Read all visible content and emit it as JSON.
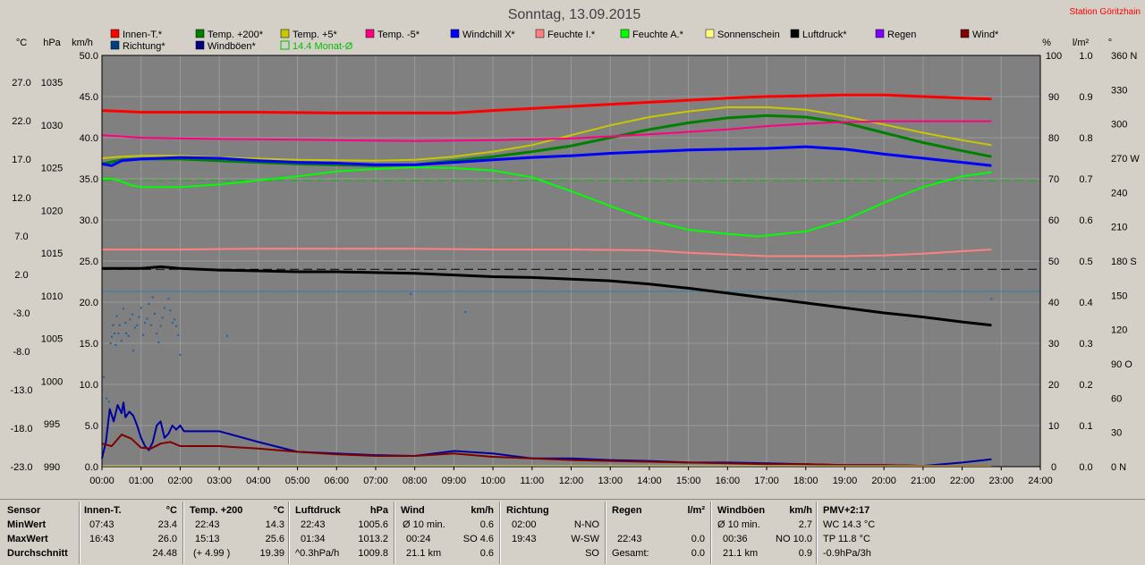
{
  "title": "Sonntag, 13.09.2015",
  "station": "Station Göritzhain",
  "units": {
    "temp": "°C",
    "pressure": "hPa",
    "wind": "km/h",
    "percent": "%",
    "rain": "l/m²",
    "deg": "°"
  },
  "legend": [
    {
      "label": "Innen-T.*",
      "color": "#ff0000"
    },
    {
      "label": "Temp. +200*",
      "color": "#008000"
    },
    {
      "label": "Temp. +5*",
      "color": "#c8c800"
    },
    {
      "label": "Temp. -5*",
      "color": "#ff0080"
    },
    {
      "label": "Windchill X*",
      "color": "#0000ff"
    },
    {
      "label": "Feuchte I.*",
      "color": "#ff8080"
    },
    {
      "label": "Feuchte A.*",
      "color": "#00ff00"
    },
    {
      "label": "Sonnenschein",
      "color": "#ffff80"
    },
    {
      "label": "Luftdruck*",
      "color": "#000000"
    },
    {
      "label": "Regen",
      "color": "#8000ff"
    },
    {
      "label": "Wind*",
      "color": "#800000"
    },
    {
      "label": "Richtung*",
      "color": "#004080"
    },
    {
      "label": "Windböen*",
      "color": "#000080"
    },
    {
      "label": "14.4 Monat-Ø",
      "color": "#00c000",
      "outline": true
    }
  ],
  "chart_data": {
    "type": "line",
    "x_ticks": [
      "00:00",
      "01:00",
      "02:00",
      "03:00",
      "04:00",
      "05:00",
      "06:00",
      "07:00",
      "08:00",
      "09:00",
      "10:00",
      "11:00",
      "12:00",
      "13:00",
      "14:00",
      "15:00",
      "16:00",
      "17:00",
      "18:00",
      "19:00",
      "20:00",
      "21:00",
      "22:00",
      "23:00",
      "24:00"
    ],
    "y_main_ticks": [
      "50.0",
      "45.0",
      "40.0",
      "35.0",
      "30.0",
      "25.0",
      "20.0",
      "15.0",
      "10.0",
      "5.0",
      "0.0"
    ],
    "y_temp_ticks": [
      "27.0",
      "22.0",
      "17.0",
      "12.0",
      "7.0",
      "2.0",
      "-3.0",
      "-8.0",
      "-13.0",
      "-18.0",
      "-23.0"
    ],
    "y_hpa_ticks": [
      "1035",
      "1030",
      "1025",
      "1020",
      "1015",
      "1010",
      "1005",
      "1000",
      "995",
      "990"
    ],
    "y_percent_ticks": [
      "100",
      "90",
      "80",
      "70",
      "60",
      "50",
      "40",
      "30",
      "20",
      "10",
      "0"
    ],
    "y_rain_ticks": [
      "1.0",
      "0.9",
      "0.8",
      "0.7",
      "0.6",
      "0.5",
      "0.4",
      "0.3",
      "0.2",
      "0.1",
      "0.0"
    ],
    "y_dir_ticks": [
      "360 N",
      "330",
      "300",
      "270 W",
      "240",
      "210",
      "180 S",
      "150",
      "120",
      "90  O",
      "60",
      "30",
      "0  N"
    ],
    "ylim": [
      0,
      50
    ],
    "x_hours": [
      0,
      24
    ],
    "series": [
      {
        "name": "Innen-T.*",
        "color": "#ff0000",
        "width": 3,
        "x": [
          0,
          1,
          2,
          4,
          6,
          8,
          9,
          10,
          12,
          14,
          16,
          17,
          18,
          19,
          20,
          22,
          22.75
        ],
        "y": [
          43.3,
          43.1,
          43.1,
          43.1,
          43.0,
          43.0,
          43.0,
          43.3,
          43.8,
          44.3,
          44.8,
          45.0,
          45.1,
          45.2,
          45.2,
          44.8,
          44.7
        ]
      },
      {
        "name": "Temp. +200*",
        "color": "#008000",
        "width": 3,
        "x": [
          0,
          0.5,
          1,
          2,
          3,
          5,
          7,
          8,
          9,
          10,
          11,
          12,
          13,
          14,
          15,
          16,
          17,
          18,
          19,
          20,
          21,
          22,
          22.75
        ],
        "y": [
          36.8,
          37.3,
          37.4,
          37.4,
          37.2,
          36.8,
          36.6,
          36.7,
          37.2,
          37.7,
          38.3,
          39.0,
          40.0,
          41.0,
          41.8,
          42.4,
          42.7,
          42.5,
          41.8,
          40.6,
          39.4,
          38.4,
          37.7
        ]
      },
      {
        "name": "Temp. +5*",
        "color": "#c8c800",
        "width": 2,
        "x": [
          0,
          0.5,
          1,
          2,
          3,
          5,
          7,
          8,
          9,
          10,
          11,
          12,
          13,
          14,
          15,
          16,
          17,
          18,
          19,
          20,
          21,
          22,
          22.75
        ],
        "y": [
          37.5,
          37.7,
          37.8,
          37.8,
          37.6,
          37.3,
          37.2,
          37.3,
          37.7,
          38.3,
          39.1,
          40.3,
          41.5,
          42.5,
          43.2,
          43.7,
          43.7,
          43.4,
          42.6,
          41.6,
          40.6,
          39.7,
          39.1
        ]
      },
      {
        "name": "Temp. -5*",
        "color": "#ff0080",
        "width": 2,
        "x": [
          0,
          1,
          2,
          4,
          6,
          8,
          10,
          12,
          14,
          16,
          17,
          18,
          19,
          20,
          22,
          22.75
        ],
        "y": [
          40.3,
          40.0,
          39.9,
          39.8,
          39.7,
          39.6,
          39.7,
          39.9,
          40.4,
          41.0,
          41.4,
          41.7,
          41.9,
          42.0,
          42.0,
          42.0
        ]
      },
      {
        "name": "Windchill X*",
        "color": "#0000ff",
        "width": 3,
        "x": [
          0,
          0.25,
          0.5,
          1,
          2,
          3,
          4,
          5,
          6,
          7,
          8,
          9,
          10,
          11,
          12,
          13,
          14,
          15,
          16,
          17,
          18,
          19,
          20,
          21,
          22,
          22.75
        ],
        "y": [
          36.8,
          36.6,
          37.2,
          37.4,
          37.6,
          37.5,
          37.2,
          37.0,
          36.9,
          36.7,
          36.7,
          37.0,
          37.3,
          37.6,
          37.8,
          38.1,
          38.3,
          38.5,
          38.6,
          38.7,
          38.9,
          38.6,
          38.0,
          37.5,
          37.0,
          36.6
        ]
      },
      {
        "name": "Feuchte I.*",
        "color": "#ff8080",
        "width": 2,
        "x": [
          0,
          2,
          4,
          6,
          8,
          10,
          12,
          14,
          15,
          16,
          17,
          18,
          19,
          20,
          21,
          22,
          22.75
        ],
        "y": [
          26.4,
          26.4,
          26.5,
          26.5,
          26.5,
          26.4,
          26.4,
          26.3,
          26.0,
          25.8,
          25.6,
          25.6,
          25.6,
          25.7,
          25.9,
          26.2,
          26.4
        ]
      },
      {
        "name": "Feuchte A.*",
        "color": "#00ff00",
        "width": 2,
        "x": [
          0,
          0.25,
          0.5,
          0.75,
          1,
          2,
          3,
          4,
          5,
          6,
          7,
          8,
          9,
          10,
          11,
          12,
          13,
          14,
          15,
          16,
          16.75,
          17,
          18,
          19,
          20,
          21,
          22,
          22.75
        ],
        "y": [
          35.0,
          35.0,
          34.7,
          34.2,
          34.0,
          34.0,
          34.3,
          34.8,
          35.3,
          35.9,
          36.2,
          36.4,
          36.3,
          36.0,
          35.2,
          33.5,
          31.7,
          30.0,
          28.8,
          28.3,
          28.0,
          28.1,
          28.6,
          30.0,
          32.1,
          34.0,
          35.3,
          35.8
        ]
      },
      {
        "name": "Luftdruck*",
        "color": "#000000",
        "width": 3,
        "x": [
          0,
          1,
          1.5,
          2,
          3,
          4,
          5,
          6,
          7,
          8,
          9,
          10,
          11,
          12,
          13,
          14,
          15,
          16,
          17,
          18,
          19,
          20,
          21,
          22,
          22.75
        ],
        "y": [
          24.1,
          24.1,
          24.3,
          24.1,
          23.9,
          23.8,
          23.7,
          23.7,
          23.6,
          23.5,
          23.3,
          23.1,
          23.0,
          22.8,
          22.6,
          22.2,
          21.7,
          21.1,
          20.5,
          19.9,
          19.3,
          18.7,
          18.2,
          17.6,
          17.2
        ]
      },
      {
        "name": "Windböen*",
        "color": "#0000a0",
        "width": 2,
        "x": [
          0,
          0.1,
          0.2,
          0.3,
          0.4,
          0.5,
          0.55,
          0.6,
          0.7,
          0.8,
          0.9,
          1.0,
          1.1,
          1.2,
          1.3,
          1.4,
          1.5,
          1.6,
          1.7,
          1.8,
          1.9,
          2.0,
          2.1,
          3,
          4,
          5,
          6,
          7,
          8,
          9,
          10,
          11,
          12,
          13,
          14,
          15,
          16,
          17,
          18,
          19,
          20,
          21,
          22,
          22.75
        ],
        "y": [
          1.0,
          3.0,
          7.0,
          5.5,
          7.5,
          6.5,
          7.8,
          6.0,
          6.7,
          6.2,
          5.0,
          3.5,
          2.5,
          2.0,
          3.0,
          5.0,
          5.5,
          3.5,
          4.0,
          5.0,
          4.5,
          5.0,
          4.3,
          4.3,
          3.0,
          1.8,
          1.6,
          1.4,
          1.3,
          1.9,
          1.6,
          1.0,
          1.0,
          0.8,
          0.7,
          0.5,
          0.5,
          0.4,
          0.3,
          0.2,
          0.2,
          0.1,
          0.5,
          0.9
        ]
      },
      {
        "name": "Wind*",
        "color": "#800000",
        "width": 2,
        "x": [
          0,
          0.25,
          0.5,
          0.75,
          1.0,
          1.25,
          1.5,
          1.75,
          2.0,
          3,
          4,
          5,
          6,
          7,
          8,
          9,
          10,
          11,
          12,
          13,
          14,
          15,
          16,
          17,
          18,
          19,
          20,
          21,
          22,
          22.75
        ],
        "y": [
          2.8,
          2.5,
          3.9,
          3.4,
          2.3,
          2.2,
          2.8,
          3.0,
          2.5,
          2.5,
          2.2,
          1.8,
          1.5,
          1.3,
          1.3,
          1.6,
          1.2,
          1.0,
          0.8,
          0.7,
          0.6,
          0.5,
          0.4,
          0.3,
          0.3,
          0.2,
          0.2,
          0.1,
          0.1,
          0.1
        ]
      },
      {
        "name": "Sonnenschein",
        "color": "#ffff80",
        "width": 1,
        "x": [
          0,
          22.75
        ],
        "y": [
          0.1,
          0.1
        ]
      }
    ],
    "reference_lines": [
      {
        "name": "Temp. Monat-Ø",
        "color": "#00c000",
        "y": 34.8,
        "dash": true
      },
      {
        "name": "Luftdruck ref",
        "color": "#000000",
        "y": 24.0,
        "dash": true
      },
      {
        "name": "Richtung ref",
        "color": "#3080a0",
        "y": 21.3,
        "dash": false
      }
    ],
    "direction_points": {
      "color": "#2060a0",
      "x": [
        0.05,
        0.12,
        0.18,
        0.22,
        0.25,
        0.28,
        0.32,
        0.35,
        0.38,
        0.42,
        0.45,
        0.5,
        0.55,
        0.6,
        0.62,
        0.68,
        0.72,
        0.78,
        0.8,
        0.85,
        0.9,
        0.95,
        1.0,
        1.05,
        1.1,
        1.15,
        1.2,
        1.25,
        1.3,
        1.35,
        1.4,
        1.45,
        1.5,
        1.55,
        1.6,
        1.7,
        1.75,
        1.8,
        1.85,
        1.9,
        1.95,
        2.0,
        3.2,
        7.9,
        9.3,
        22.75
      ],
      "y": [
        10.9,
        8.3,
        7.9,
        15.0,
        15.8,
        17.2,
        16.2,
        14.8,
        18.3,
        16.2,
        17.2,
        15.3,
        19.2,
        17.5,
        16.2,
        15.9,
        17.9,
        18.5,
        14.1,
        16.9,
        17.2,
        18.2,
        19.3,
        16.0,
        17.5,
        18.0,
        19.8,
        17.2,
        20.6,
        18.6,
        16.2,
        15.1,
        17.1,
        18.1,
        19.3,
        20.4,
        19.0,
        17.5,
        17.9,
        17.1,
        16.0,
        13.6,
        15.9,
        21.0,
        18.8,
        20.4
      ]
    }
  },
  "stats": {
    "sensor": {
      "header": "Sensor",
      "rows": [
        "MinWert",
        "MaxWert",
        "Durchschnitt"
      ]
    },
    "innen": {
      "header": "Innen-T.",
      "unit": "°C",
      "rows": [
        [
          "07:43",
          "23.4"
        ],
        [
          "16:43",
          "26.0"
        ],
        [
          "",
          "24.48"
        ]
      ]
    },
    "temp200": {
      "header": "Temp. +200",
      "unit": "°C",
      "rows": [
        [
          "22:43",
          "14.3"
        ],
        [
          "15:13",
          "25.6"
        ],
        [
          "(+ 4.99 )",
          "19.39"
        ]
      ]
    },
    "luftdruck": {
      "header": "Luftdruck",
      "unit": "hPa",
      "rows": [
        [
          "22:43",
          "1005.6"
        ],
        [
          "01:34",
          "1013.2"
        ],
        [
          "^0.3hPa/h",
          "1009.8"
        ]
      ]
    },
    "wind": {
      "header": "Wind",
      "unit": "km/h",
      "rows": [
        [
          "Ø 10 min.",
          "0.6"
        ],
        [
          "00:24",
          "SO 4.6"
        ],
        [
          "21.1 km",
          "0.6"
        ]
      ]
    },
    "richtung": {
      "header": "Richtung",
      "rows": [
        [
          "02:00",
          "N-NO"
        ],
        [
          "19:43",
          "W-SW"
        ],
        [
          "",
          "SO"
        ]
      ]
    },
    "regen": {
      "header": "Regen",
      "unit": "l/m²",
      "rows": [
        [
          "",
          ""
        ],
        [
          "22:43",
          "0.0"
        ],
        [
          "Gesamt:",
          "0.0"
        ]
      ]
    },
    "windboeen": {
      "header": "Windböen",
      "unit": "km/h",
      "rows": [
        [
          "Ø 10 min.",
          "2.7"
        ],
        [
          "00:36",
          "NO 10.0"
        ],
        [
          "21.1 km",
          "0.9"
        ]
      ]
    },
    "pmv": {
      "header": "PMV+2:17",
      "rows": [
        "WC 14.3 °C",
        "TP 11.8 °C",
        "-0.9hPa/3h"
      ]
    }
  }
}
